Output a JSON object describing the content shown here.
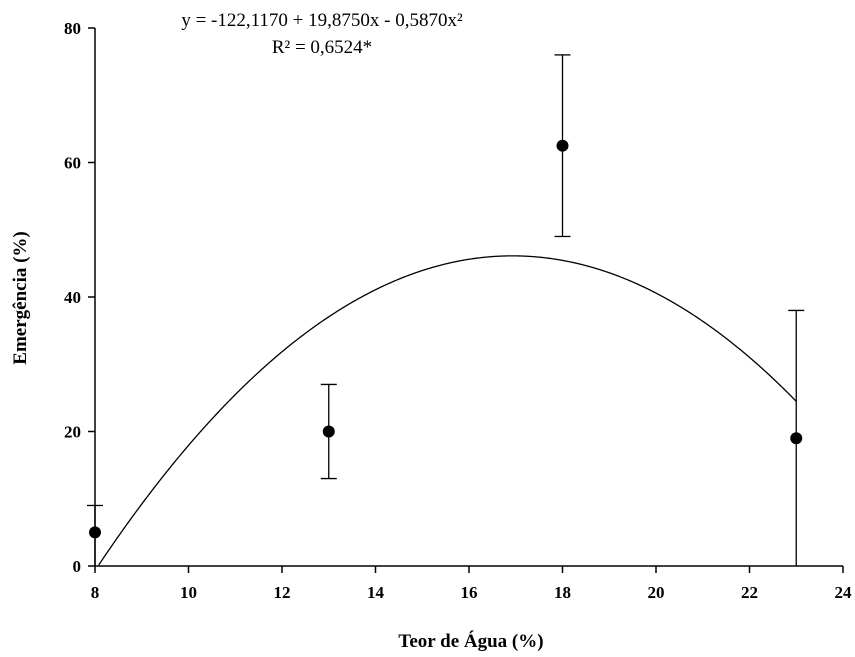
{
  "chart_data": {
    "type": "scatter",
    "xlabel": "Teor de Água (%)",
    "ylabel": "Emergência (%)",
    "xlim": [
      8,
      24
    ],
    "ylim": [
      0,
      80
    ],
    "xticks": [
      8,
      10,
      12,
      14,
      16,
      18,
      20,
      22,
      24
    ],
    "yticks": [
      0,
      20,
      40,
      60,
      80
    ],
    "grid": false,
    "series": [
      {
        "points": [
          {
            "x": 8,
            "y": 5,
            "err_low": 0,
            "err_high": 9
          },
          {
            "x": 13,
            "y": 20,
            "err_low": 13,
            "err_high": 27
          },
          {
            "x": 18,
            "y": 62.5,
            "err_low": 49,
            "err_high": 76
          },
          {
            "x": 23,
            "y": 19,
            "err_low": 0,
            "err_high": 38
          }
        ]
      }
    ],
    "fit": {
      "coefficients": [
        -122.117,
        19.875,
        -0.587
      ],
      "x_range": [
        8,
        23
      ]
    },
    "annotations": {
      "equation": "y = -122,1170 + 19,8750x - 0,5870x²",
      "r_squared": "R² = 0,6524*"
    }
  }
}
